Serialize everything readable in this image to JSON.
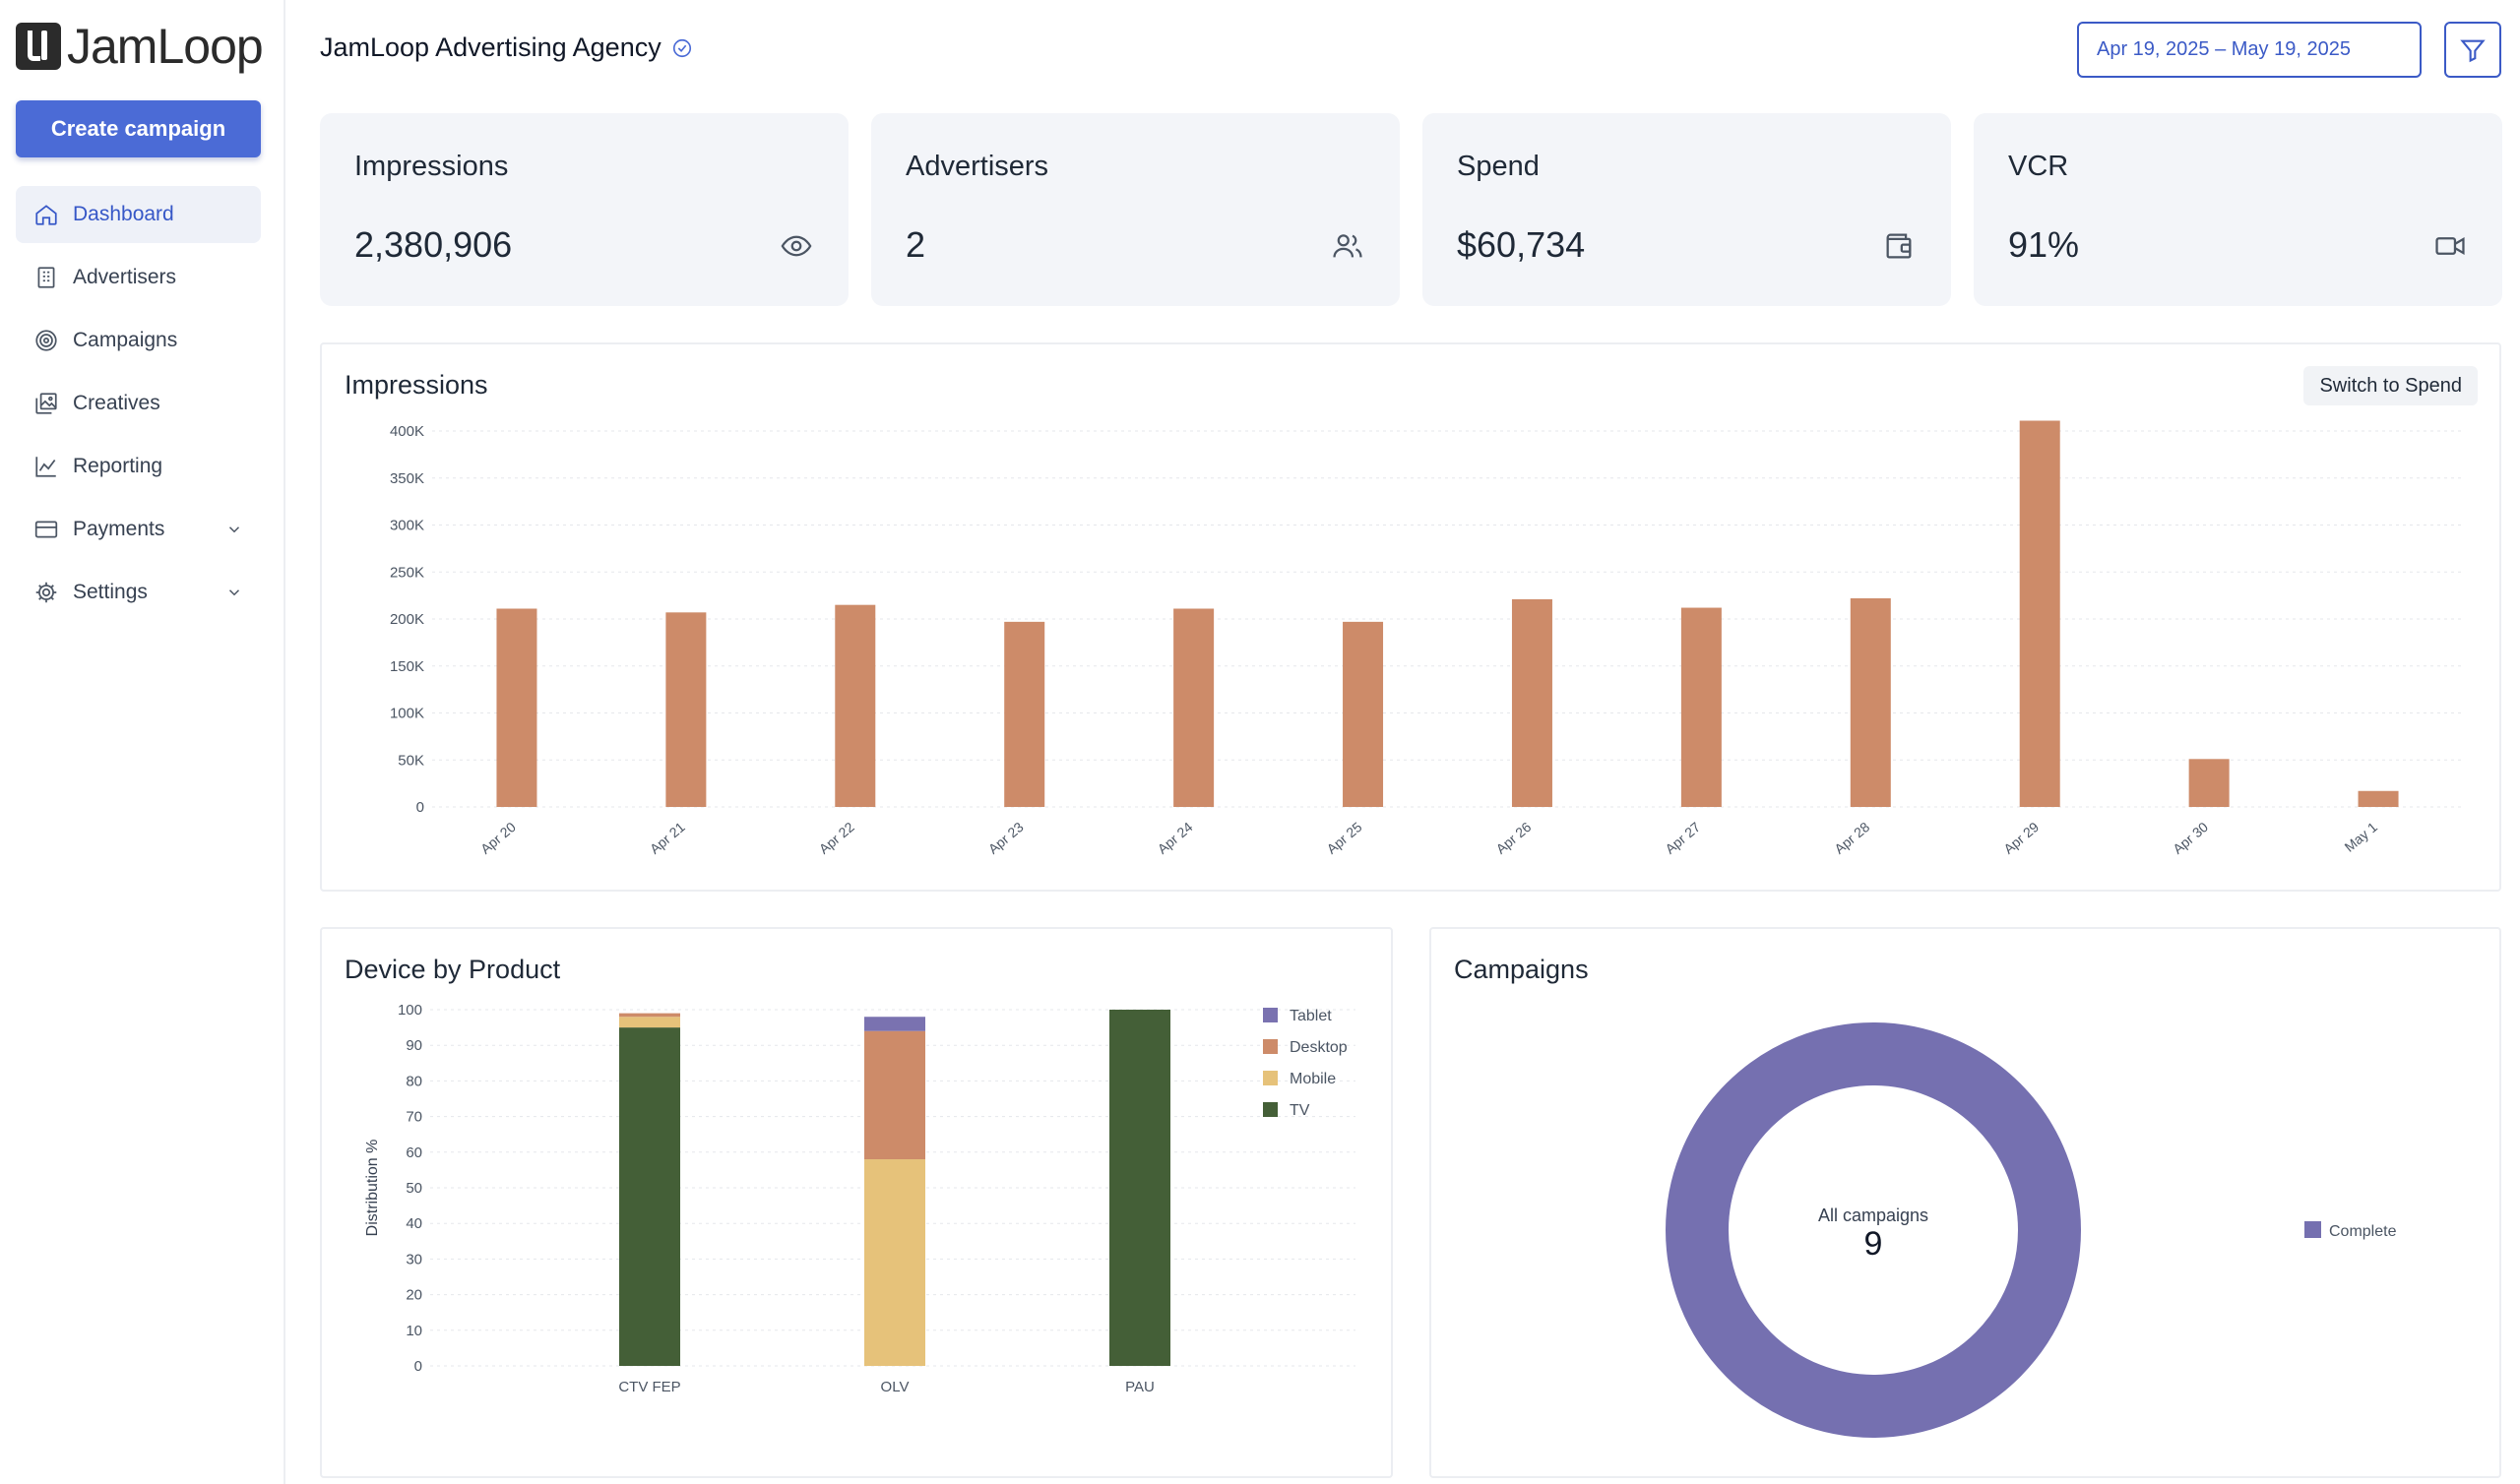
{
  "brand": {
    "name": "JamLoop"
  },
  "sidebar": {
    "create_label": "Create campaign",
    "items": [
      {
        "label": "Dashboard",
        "icon": "home-icon",
        "active": true
      },
      {
        "label": "Advertisers",
        "icon": "building-icon"
      },
      {
        "label": "Campaigns",
        "icon": "target-icon"
      },
      {
        "label": "Creatives",
        "icon": "images-icon"
      },
      {
        "label": "Reporting",
        "icon": "line-chart-icon"
      },
      {
        "label": "Payments",
        "icon": "credit-card-icon",
        "expandable": true
      },
      {
        "label": "Settings",
        "icon": "gear-icon",
        "expandable": true
      }
    ]
  },
  "header": {
    "agency_name": "JamLoop Advertising Agency",
    "date_range": "Apr 19, 2025 – May 19, 2025"
  },
  "stats": [
    {
      "title": "Impressions",
      "value": "2,380,906",
      "icon": "eye-icon"
    },
    {
      "title": "Advertisers",
      "value": "2",
      "icon": "users-icon"
    },
    {
      "title": "Spend",
      "value": "$60,734",
      "icon": "wallet-icon"
    },
    {
      "title": "VCR",
      "value": "91%",
      "icon": "video-icon"
    }
  ],
  "colors": {
    "accent": "#4b6bd6",
    "bar": "#cd8b69",
    "tablet": "#7a72b0",
    "desktop": "#cd8b69",
    "mobile": "#e6c27a",
    "tv": "#445f37",
    "donut": "#7570b0"
  },
  "impressions_panel": {
    "title": "Impressions",
    "switch_label": "Switch to Spend"
  },
  "device_panel": {
    "title": "Device by Product"
  },
  "campaigns_panel": {
    "title": "Campaigns",
    "center_label": "All campaigns",
    "center_value": "9",
    "legend": "Complete"
  },
  "chart_data": [
    {
      "type": "bar",
      "title": "Impressions",
      "categories": [
        "Apr 20",
        "Apr 21",
        "Apr 22",
        "Apr 23",
        "Apr 24",
        "Apr 25",
        "Apr 26",
        "Apr 27",
        "Apr 28",
        "Apr 29",
        "Apr 30",
        "May 1"
      ],
      "values": [
        211000,
        207000,
        215000,
        197000,
        211000,
        197000,
        221000,
        212000,
        222000,
        411000,
        51000,
        17000
      ],
      "ylim": [
        0,
        400000
      ],
      "yticks": [
        "0",
        "50K",
        "100K",
        "150K",
        "200K",
        "250K",
        "300K",
        "350K",
        "400K"
      ],
      "grid": true
    },
    {
      "type": "bar",
      "stacked": true,
      "title": "Device by Product",
      "ylabel": "Distribution %",
      "categories": [
        "CTV FEP",
        "OLV",
        "PAU"
      ],
      "series": [
        {
          "name": "TV",
          "values": [
            95,
            0,
            100
          ]
        },
        {
          "name": "Mobile",
          "values": [
            3,
            58,
            0
          ]
        },
        {
          "name": "Desktop",
          "values": [
            1,
            36,
            0
          ]
        },
        {
          "name": "Tablet",
          "values": [
            0,
            4,
            0
          ]
        }
      ],
      "ylim": [
        0,
        100
      ],
      "yticks": [
        "0",
        "10",
        "20",
        "30",
        "40",
        "50",
        "60",
        "70",
        "80",
        "90",
        "100"
      ],
      "legend": "top-right"
    },
    {
      "type": "pie",
      "donut": true,
      "title": "Campaigns",
      "categories": [
        "Complete"
      ],
      "values": [
        9
      ],
      "legend": "right"
    }
  ]
}
